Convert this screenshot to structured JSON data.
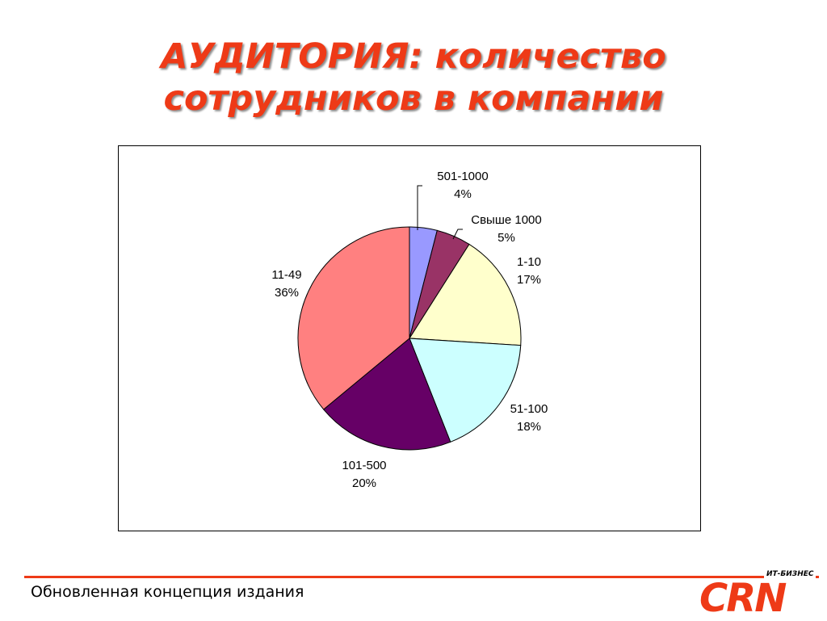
{
  "slide": {
    "title_line1": "АУДИТОРИЯ: количество",
    "title_line2": "сотрудников в компании",
    "footer_text": "Обновленная концепция издания",
    "logo_text": "CRN",
    "logo_subtext": "ИТ-БИЗНЕС",
    "accent_color": "#ee3a17"
  },
  "chart_data": {
    "type": "pie",
    "start_angle": "12 o'clock",
    "direction": "clockwise",
    "slices": [
      {
        "label": "501-1000",
        "pct_label": "4%",
        "value": 4,
        "color": "#9999ff"
      },
      {
        "label": "Свыше 1000",
        "pct_label": "5%",
        "value": 5,
        "color": "#993366"
      },
      {
        "label": "1-10",
        "pct_label": "17%",
        "value": 17,
        "color": "#ffffcc"
      },
      {
        "label": "51-100",
        "pct_label": "18%",
        "value": 18,
        "color": "#ccffff"
      },
      {
        "label": "101-500",
        "pct_label": "20%",
        "value": 20,
        "color": "#660066"
      },
      {
        "label": "11-49",
        "pct_label": "36%",
        "value": 36,
        "color": "#ff8080"
      }
    ]
  }
}
